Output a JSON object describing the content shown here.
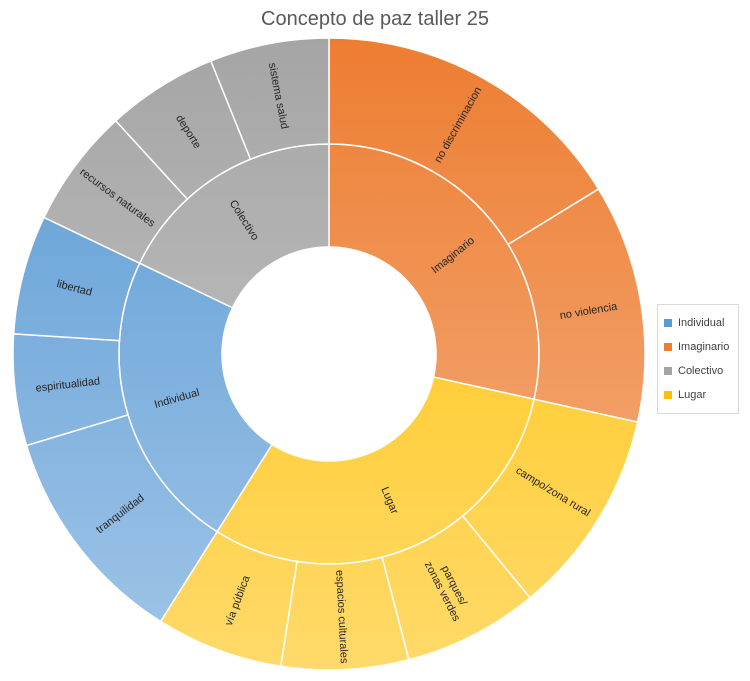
{
  "chart_data": {
    "type": "sunburst",
    "title": "Concepto de paz taller 25",
    "legend_position": "right",
    "categories": [
      {
        "name": "Imaginario",
        "color": "#ED7D31",
        "children": [
          {
            "name": "no discriminacion",
            "value": 2
          },
          {
            "name": "no violencia",
            "value": 1.5
          }
        ]
      },
      {
        "name": "Lugar",
        "color": "#FFC000",
        "children": [
          {
            "name": "campo/zona rural",
            "value": 1.3
          },
          {
            "name": "parques/zonas verdes",
            "value": 0.85
          },
          {
            "name": "espacios culturales",
            "value": 0.8
          },
          {
            "name": "vía pública",
            "value": 0.8
          }
        ]
      },
      {
        "name": "Individual",
        "color": "#5B9BD5",
        "children": [
          {
            "name": "tranquilidad",
            "value": 1.4
          },
          {
            "name": "espiritualidad",
            "value": 0.7
          },
          {
            "name": "libertad",
            "value": 0.75
          }
        ]
      },
      {
        "name": "Colectivo",
        "color": "#A5A5A5",
        "children": [
          {
            "name": "recursos naturales",
            "value": 0.75
          },
          {
            "name": "deporte",
            "value": 0.7
          },
          {
            "name": "sistema salud",
            "value": 0.75
          }
        ]
      }
    ],
    "legend": [
      "Individual",
      "Imaginario",
      "Colectivo",
      "Lugar"
    ]
  }
}
